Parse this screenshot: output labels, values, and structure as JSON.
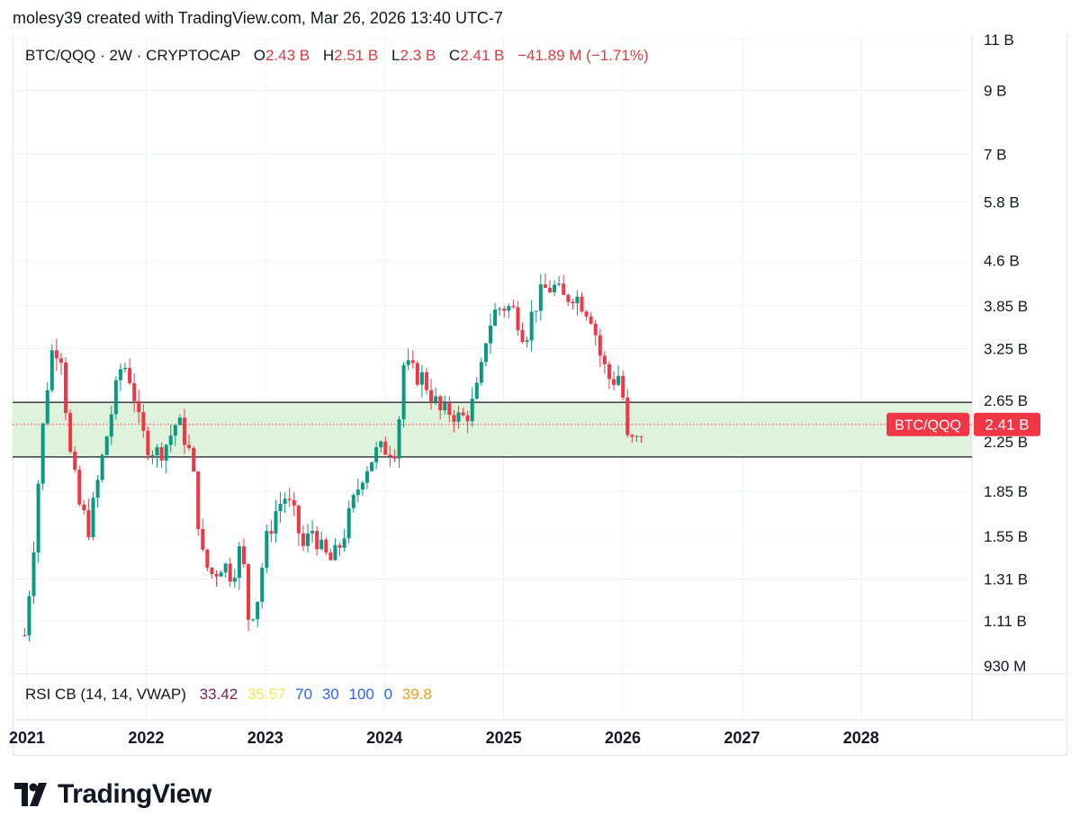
{
  "header": {
    "attribution": "molesy39 created with TradingView.com, Mar 26, 2026 13:40 UTC-7"
  },
  "legend": {
    "symbol": "BTC/QQQ · 2W · CRYPTOCAP",
    "open_label": "O",
    "open": "2.43 B",
    "high_label": "H",
    "high": "2.51 B",
    "low_label": "L",
    "low": "2.3 B",
    "close_label": "C",
    "close": "2.41 B",
    "change": "−41.89 M (−1.71%)"
  },
  "rsi": {
    "name": "RSI CB (14, 14, VWAP)",
    "values": [
      {
        "text": "33.42",
        "color": "#7b1e5a"
      },
      {
        "text": "35.57",
        "color": "#f5e663"
      },
      {
        "text": "70",
        "color": "#2962ff"
      },
      {
        "text": "30",
        "color": "#2962ff"
      },
      {
        "text": "100",
        "color": "#2962ff"
      },
      {
        "text": "0",
        "color": "#2962ff"
      },
      {
        "text": "39.8",
        "color": "#f39c12"
      }
    ]
  },
  "price_tag": {
    "symbol": "BTC/QQQ",
    "value": "2.41 B"
  },
  "footer": {
    "brand": "TradingView"
  },
  "colors": {
    "up": "#089981",
    "down": "#f23645",
    "zone_fill": "#dff2dc",
    "tag": "#f23645"
  },
  "chart_data": {
    "type": "candlestick",
    "y_scale": "log",
    "ylim": [
      0.93,
      11
    ],
    "y_ticks": [
      {
        "label": "11 B",
        "value": 11
      },
      {
        "label": "9 B",
        "value": 9
      },
      {
        "label": "7 B",
        "value": 7
      },
      {
        "label": "5.8 B",
        "value": 5.8
      },
      {
        "label": "4.6 B",
        "value": 4.6
      },
      {
        "label": "3.85 B",
        "value": 3.85
      },
      {
        "label": "3.25 B",
        "value": 3.25
      },
      {
        "label": "2.65 B",
        "value": 2.65
      },
      {
        "label": "2.25 B",
        "value": 2.25
      },
      {
        "label": "1.85 B",
        "value": 1.85
      },
      {
        "label": "1.55 B",
        "value": 1.55
      },
      {
        "label": "1.31 B",
        "value": 1.31
      },
      {
        "label": "1.11 B",
        "value": 1.11
      },
      {
        "label": "930 M",
        "value": 0.93
      }
    ],
    "x_ticks": [
      "2021",
      "2022",
      "2023",
      "2024",
      "2025",
      "2026",
      "2027",
      "2028"
    ],
    "x_range": [
      2020.97,
      2029.2
    ],
    "zone": {
      "low": 2.12,
      "high": 2.63
    },
    "last_price": 2.41,
    "series_name": "BTC/QQQ",
    "anchors": [
      [
        2020.98,
        1.05
      ],
      [
        2021.05,
        1.45
      ],
      [
        2021.12,
        2.25
      ],
      [
        2021.2,
        3.2
      ],
      [
        2021.28,
        3.3
      ],
      [
        2021.36,
        2.15
      ],
      [
        2021.44,
        1.75
      ],
      [
        2021.52,
        1.6
      ],
      [
        2021.62,
        2.05
      ],
      [
        2021.72,
        2.6
      ],
      [
        2021.8,
        3.1
      ],
      [
        2021.88,
        2.85
      ],
      [
        2021.95,
        2.35
      ],
      [
        2022.02,
        2.22
      ],
      [
        2022.1,
        2.15
      ],
      [
        2022.18,
        2.25
      ],
      [
        2022.26,
        2.45
      ],
      [
        2022.32,
        2.3
      ],
      [
        2022.38,
        2.1
      ],
      [
        2022.43,
        1.7
      ],
      [
        2022.48,
        1.4
      ],
      [
        2022.56,
        1.33
      ],
      [
        2022.64,
        1.4
      ],
      [
        2022.72,
        1.33
      ],
      [
        2022.8,
        1.5
      ],
      [
        2022.86,
        1.12
      ],
      [
        2022.93,
        1.2
      ],
      [
        2023.0,
        1.5
      ],
      [
        2023.08,
        1.7
      ],
      [
        2023.16,
        1.82
      ],
      [
        2023.24,
        1.68
      ],
      [
        2023.32,
        1.48
      ],
      [
        2023.4,
        1.6
      ],
      [
        2023.48,
        1.45
      ],
      [
        2023.56,
        1.4
      ],
      [
        2023.64,
        1.52
      ],
      [
        2023.72,
        1.72
      ],
      [
        2023.82,
        2.0
      ],
      [
        2023.92,
        2.15
      ],
      [
        2024.02,
        2.2
      ],
      [
        2024.1,
        2.2
      ],
      [
        2024.16,
        3.05
      ],
      [
        2024.24,
        2.95
      ],
      [
        2024.32,
        2.9
      ],
      [
        2024.4,
        2.7
      ],
      [
        2024.48,
        2.5
      ],
      [
        2024.56,
        2.55
      ],
      [
        2024.64,
        2.45
      ],
      [
        2024.72,
        2.55
      ],
      [
        2024.8,
        2.85
      ],
      [
        2024.86,
        3.5
      ],
      [
        2024.94,
        3.8
      ],
      [
        2025.02,
        3.85
      ],
      [
        2025.1,
        3.75
      ],
      [
        2025.18,
        3.4
      ],
      [
        2025.26,
        3.85
      ],
      [
        2025.34,
        4.1
      ],
      [
        2025.42,
        4.15
      ],
      [
        2025.5,
        3.95
      ],
      [
        2025.58,
        4.05
      ],
      [
        2025.66,
        3.9
      ],
      [
        2025.74,
        3.7
      ],
      [
        2025.82,
        3.1
      ],
      [
        2025.9,
        2.85
      ],
      [
        2025.98,
        2.95
      ],
      [
        2026.04,
        2.25
      ],
      [
        2026.12,
        2.25
      ],
      [
        2026.18,
        2.41
      ]
    ]
  }
}
